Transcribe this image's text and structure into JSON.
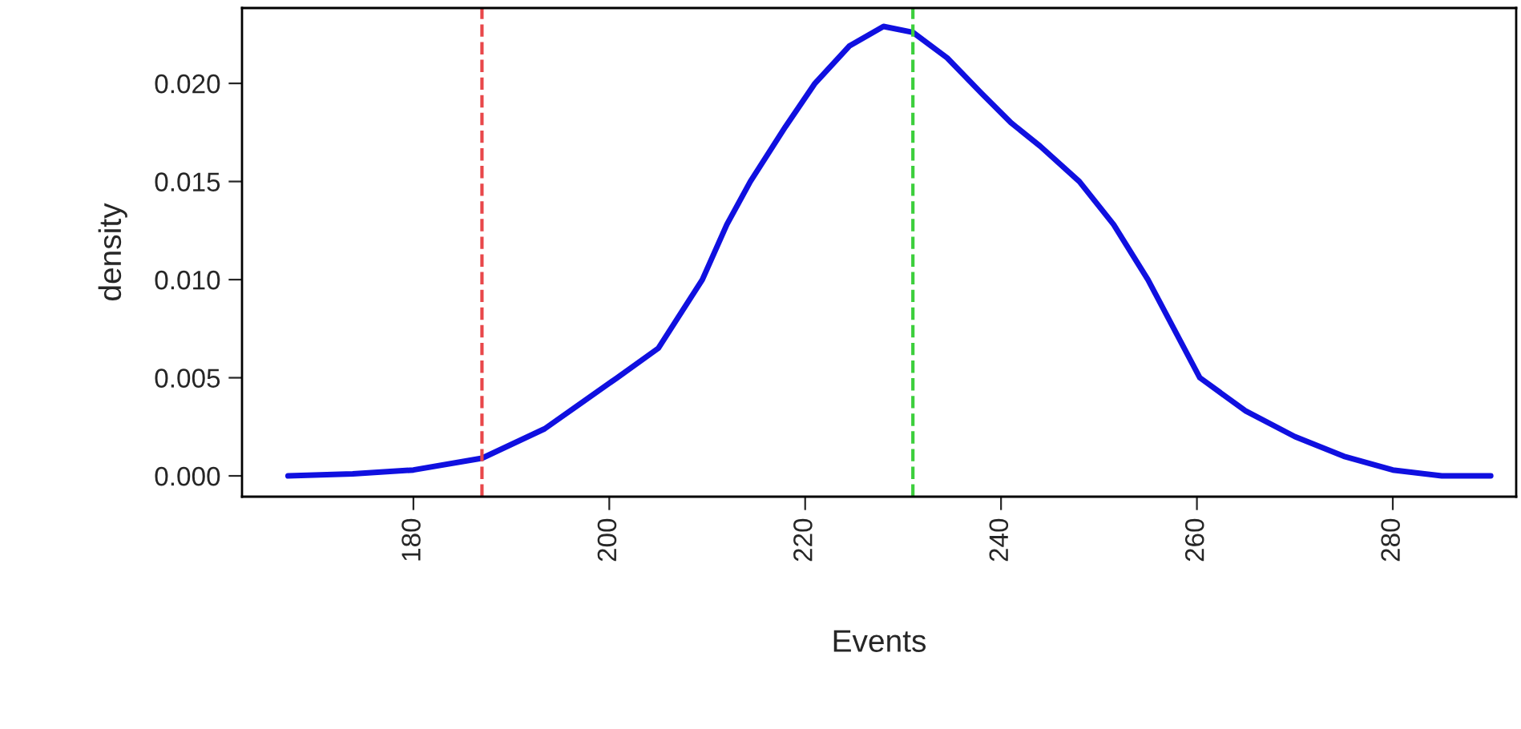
{
  "chart_data": {
    "type": "line",
    "xlabel": "Events",
    "ylabel": "density",
    "x": [
      167.2,
      173.8,
      180,
      187,
      193.4,
      200.8,
      205,
      209.5,
      212,
      214.4,
      218,
      221,
      224.5,
      228,
      231,
      234.5,
      238,
      241,
      244,
      248,
      251.5,
      255,
      260.3,
      265,
      270,
      275,
      280,
      285,
      290
    ],
    "series": [
      {
        "color": "#1010e0",
        "values": [
          0,
          0.0001,
          0.0003,
          0.0009,
          0.0024,
          0.005,
          0.0065,
          0.01,
          0.0128,
          0.015,
          0.0178,
          0.02,
          0.0219,
          0.0229,
          0.0226,
          0.0213,
          0.0195,
          0.018,
          0.0168,
          0.015,
          0.0128,
          0.01,
          0.005,
          0.0033,
          0.002,
          0.001,
          0.0003,
          0,
          0
        ]
      }
    ],
    "xlim": [
      162.5,
      292.6
    ],
    "ylim": [
      -0.00106,
      0.02384
    ],
    "xticks": [
      180,
      200,
      220,
      240,
      260,
      280
    ],
    "yticks": [
      {
        "value": 0,
        "label": "0.000"
      },
      {
        "value": 0.005,
        "label": "0.005"
      },
      {
        "value": 0.01,
        "label": "0.010"
      },
      {
        "value": 0.015,
        "label": "0.015"
      },
      {
        "value": 0.02,
        "label": "0.020"
      }
    ],
    "ref_lines": [
      {
        "axis": "x",
        "value": 187,
        "color": "#e8474a",
        "line_style": "dashed"
      },
      {
        "axis": "x",
        "value": 231,
        "color": "#3ccf3c",
        "line_style": "dashed"
      }
    ],
    "grid": false,
    "legend": false,
    "marker": "none",
    "line_style": "solid"
  }
}
